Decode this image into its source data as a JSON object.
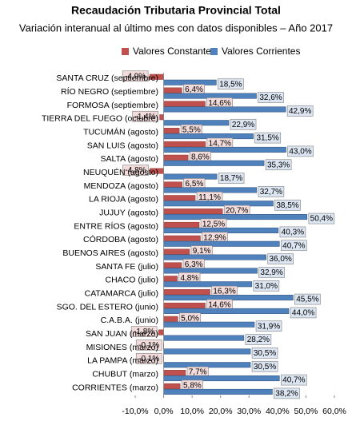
{
  "chart_data": {
    "type": "hbar",
    "title": "Recaudación Tributaria Provincial Total",
    "subtitle": "Variación interanual al último mes con datos disponibles – Año 2017",
    "categories": [
      "SANTA CRUZ (septiembre)",
      "RÍO NEGRO (septiembre)",
      "FORMOSA (septiembre)",
      "TIERRA DEL FUEGO (octubre)",
      "TUCUMÁN (agosto)",
      "SAN LUIS (agosto)",
      "SALTA (agosto)",
      "NEUQUÉN (agosto)",
      "MENDOZA (agosto)",
      "LA RIOJA (agosto)",
      "JUJUY (agosto)",
      "ENTRE RÍOS (agosto)",
      "CÓRDOBA (agosto)",
      "BUENOS AIRES (agosto)",
      "SANTA FE (julio)",
      "CHACO (julio)",
      "CATAMARCA (julio)",
      "SGO. DEL ESTERO (junio)",
      "C.A.B.A. (junio)",
      "SAN JUAN (marzo)",
      "MISIONES (marzo)",
      "LA PAMPA (marzo)",
      "CHUBUT (marzo)",
      "CORRIENTES (marzo)"
    ],
    "series": [
      {
        "name": "Valores Constantes",
        "color": "#c0504d",
        "label_bg": "#f2dcdb",
        "values": [
          -4.9,
          6.4,
          14.6,
          -1.4,
          5.5,
          14.7,
          8.6,
          -4.8,
          6.5,
          11.1,
          20.7,
          12.5,
          12.9,
          9.1,
          6.3,
          4.8,
          16.3,
          14.6,
          5.0,
          -1.8,
          -0.1,
          -0.1,
          7.7,
          5.8
        ],
        "value_labels": [
          "-4,9%",
          "6,4%",
          "14,6%",
          "-1,4%",
          "5,5%",
          "14,7%",
          "8,6%",
          "-4,8%",
          "6,5%",
          "11,1%",
          "20,7%",
          "12,5%",
          "12,9%",
          "9,1%",
          "6,3%",
          "4,8%",
          "16,3%",
          "14,6%",
          "5,0%",
          "-1,8%",
          "-0,1%",
          "-0,1%",
          "7,7%",
          "5,8%"
        ]
      },
      {
        "name": "Valores Corrientes",
        "color": "#4f81bd",
        "label_bg": "#dce6f2",
        "values": [
          18.5,
          32.6,
          42.9,
          22.9,
          31.5,
          43.0,
          35.3,
          18.7,
          32.7,
          38.5,
          50.4,
          40.3,
          40.7,
          36.0,
          32.9,
          31.0,
          45.5,
          44.0,
          31.9,
          28.2,
          30.5,
          30.5,
          40.7,
          38.2
        ],
        "value_labels": [
          "18,5%",
          "32,6%",
          "42,9%",
          "22,9%",
          "31,5%",
          "43,0%",
          "35,3%",
          "18,7%",
          "32,7%",
          "38,5%",
          "50,4%",
          "40,3%",
          "40,7%",
          "36,0%",
          "32,9%",
          "31,0%",
          "45,5%",
          "44,0%",
          "31,9%",
          "28,2%",
          "30,5%",
          "30,5%",
          "40,7%",
          "38,2%"
        ]
      }
    ],
    "xlim": [
      -10,
      60
    ],
    "xticks": [
      {
        "value": -10,
        "label": "-10,0%"
      },
      {
        "value": 0,
        "label": "0,0%"
      },
      {
        "value": 10,
        "label": "10,0%"
      },
      {
        "value": 20,
        "label": "20,0%"
      },
      {
        "value": 30,
        "label": "30,0%"
      },
      {
        "value": 40,
        "label": "40,0%"
      },
      {
        "value": 50,
        "label": "50,0%"
      },
      {
        "value": 60,
        "label": "60,0%"
      }
    ],
    "legend": "top"
  }
}
